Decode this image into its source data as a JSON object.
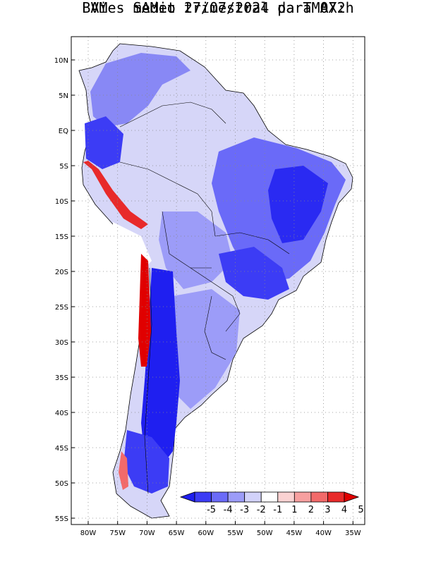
{
  "title": {
    "line1": "Vies medio trimestral da TMAX:",
    "line2": "BAM - SAMet 27/07/2024  para 072h"
  },
  "map": {
    "region": "South America",
    "lon_ticks": [
      "80W",
      "75W",
      "70W",
      "65W",
      "60W",
      "55W",
      "50W",
      "45W",
      "40W",
      "35W"
    ],
    "lat_ticks": [
      "10N",
      "5N",
      "EQ",
      "5S",
      "10S",
      "15S",
      "20S",
      "25S",
      "30S",
      "35S",
      "40S",
      "45S",
      "50S",
      "55S"
    ],
    "grid": "dotted"
  },
  "colorbar": {
    "labels": [
      "-5",
      "-4",
      "-3",
      "-2",
      "-1",
      "1",
      "2",
      "3",
      "4",
      "5"
    ],
    "colors": [
      "#1f1ff0",
      "#3c3cf5",
      "#6a6af8",
      "#9c9cf8",
      "#d2d2fa",
      "#ffffff",
      "#fad2d2",
      "#f7a0a0",
      "#f26a6a",
      "#e82a2a",
      "#e00000"
    ]
  }
}
